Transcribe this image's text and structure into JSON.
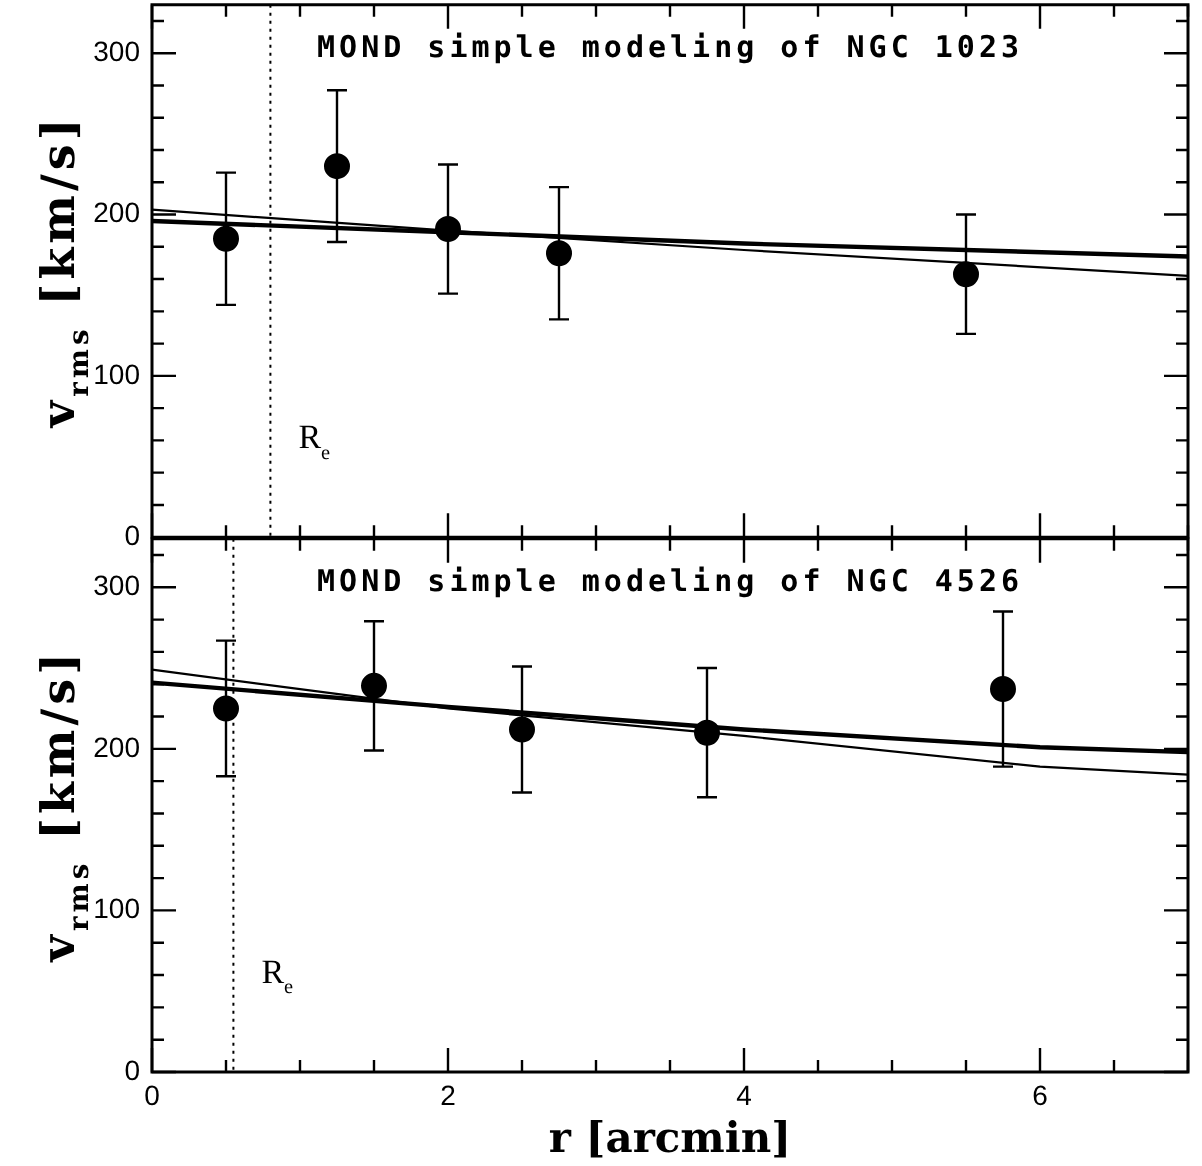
{
  "chart_data": [
    {
      "type": "scatter",
      "title": "MOND simple modeling of NGC 1023",
      "ylabel": "v$_{rms}$ [km/s]",
      "xlim": [
        0,
        7
      ],
      "xticks": [
        0,
        {
          "value": 0.5,
          "label": null
        },
        {
          "value": 1,
          "label": null
        },
        {
          "value": 1.5,
          "label": null
        },
        2,
        {
          "value": 2.5,
          "label": null
        },
        {
          "value": 3,
          "label": null
        },
        {
          "value": 3.5,
          "label": null
        },
        4,
        {
          "value": 4.5,
          "label": null
        },
        {
          "value": 5,
          "label": null
        },
        {
          "value": 5.5,
          "label": null
        },
        6,
        {
          "value": 6.5,
          "label": null
        },
        {
          "value": 7,
          "label": null
        }
      ],
      "ylim": [
        0,
        330
      ],
      "yticks": [
        0,
        {
          "value": 20,
          "label": null
        },
        {
          "value": 40,
          "label": null
        },
        {
          "value": 60,
          "label": null
        },
        {
          "value": 80,
          "label": null
        },
        100,
        {
          "value": 120,
          "label": null
        },
        {
          "value": 140,
          "label": null
        },
        {
          "value": 160,
          "label": null
        },
        {
          "value": 180,
          "label": null
        },
        200,
        {
          "value": 220,
          "label": null
        },
        {
          "value": 240,
          "label": null
        },
        {
          "value": 260,
          "label": null
        },
        {
          "value": 280,
          "label": null
        },
        300,
        {
          "value": 320,
          "label": null
        }
      ],
      "tick_labels": "y",
      "legend": false,
      "series": [
        {
          "color": "#000000",
          "marker": "circle",
          "x": [
            0.5,
            1.25,
            2,
            2.75,
            5.5
          ],
          "values": [
            185,
            230,
            191,
            176,
            163
          ],
          "errors": [
            41,
            47,
            40,
            41,
            37
          ]
        },
        {
          "type": "line",
          "marker": "none",
          "color": "#000000",
          "x": [
            0,
            2,
            4,
            7
          ],
          "values": [
            196,
            189,
            182,
            174
          ]
        },
        {
          "type": "line",
          "marker": "none",
          "color": "#000000",
          "x": [
            0,
            2,
            4,
            7
          ],
          "values": [
            203,
            190,
            178,
            162
          ]
        }
      ],
      "ref_lines": [
        {
          "axis": "x",
          "value": 0.8,
          "label": "R$_{e}$",
          "line_style": "dotted",
          "color": "#000000"
        }
      ]
    },
    {
      "type": "scatter",
      "title": "MOND simple modeling of NGC 4526",
      "xlabel": "r [arcmin]",
      "ylabel": "v$_{rms}$ [km/s]",
      "xlim": [
        0,
        7
      ],
      "xticks": [
        0,
        {
          "value": 0.5,
          "label": null
        },
        {
          "value": 1,
          "label": null
        },
        {
          "value": 1.5,
          "label": null
        },
        2,
        {
          "value": 2.5,
          "label": null
        },
        {
          "value": 3,
          "label": null
        },
        {
          "value": 3.5,
          "label": null
        },
        4,
        {
          "value": 4.5,
          "label": null
        },
        {
          "value": 5,
          "label": null
        },
        {
          "value": 5.5,
          "label": null
        },
        6,
        {
          "value": 6.5,
          "label": null
        },
        {
          "value": 7,
          "label": null
        }
      ],
      "ylim": [
        0,
        330
      ],
      "yticks": [
        0,
        {
          "value": 20,
          "label": null
        },
        {
          "value": 40,
          "label": null
        },
        {
          "value": 60,
          "label": null
        },
        {
          "value": 80,
          "label": null
        },
        100,
        {
          "value": 120,
          "label": null
        },
        {
          "value": 140,
          "label": null
        },
        {
          "value": 160,
          "label": null
        },
        {
          "value": 180,
          "label": null
        },
        200,
        {
          "value": 220,
          "label": null
        },
        {
          "value": 240,
          "label": null
        },
        {
          "value": 260,
          "label": null
        },
        {
          "value": 280,
          "label": null
        },
        300,
        {
          "value": 320,
          "label": null
        }
      ],
      "legend": false,
      "series": [
        {
          "color": "#000000",
          "marker": "circle",
          "x": [
            0.5,
            1.5,
            2.5,
            3.75,
            5.75
          ],
          "values": [
            225,
            239,
            212,
            210,
            237
          ],
          "errors": [
            42,
            40,
            39,
            40,
            48
          ]
        },
        {
          "type": "line",
          "marker": "none",
          "color": "#000000",
          "x": [
            0,
            2,
            4,
            6,
            7
          ],
          "values": [
            241,
            226,
            212,
            201,
            198
          ]
        },
        {
          "type": "line",
          "marker": "none",
          "color": "#000000",
          "x": [
            0,
            2,
            4,
            6,
            7
          ],
          "values": [
            249,
            225,
            208,
            189,
            184
          ]
        }
      ],
      "ref_lines": [
        {
          "axis": "x",
          "value": 0.55,
          "label": "R$_{e}$",
          "line_style": "dotted",
          "color": "#000000"
        }
      ]
    }
  ]
}
